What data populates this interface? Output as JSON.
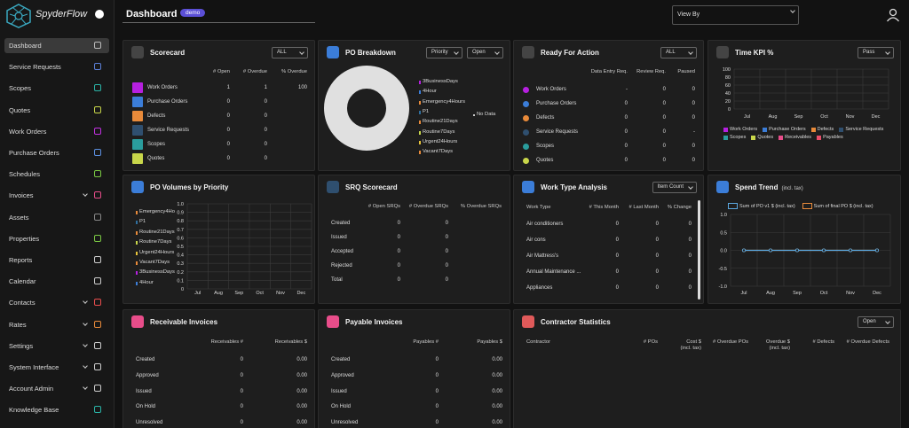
{
  "sidebar": {
    "brand": "SpyderFlow",
    "items": [
      {
        "label": "Dashboard",
        "active": true,
        "icon_color": "#bbbbbb"
      },
      {
        "label": "Service Requests",
        "icon_color": "#5b7fd6"
      },
      {
        "label": "Scopes",
        "icon_color": "#2ab3a6"
      },
      {
        "label": "Quotes",
        "icon_color": "#c8d64a"
      },
      {
        "label": "Work Orders",
        "icon_color": "#c030e0"
      },
      {
        "label": "Purchase Orders",
        "icon_color": "#5b8fe0"
      },
      {
        "label": "Schedules",
        "icon_color": "#7ac943"
      },
      {
        "label": "Invoices",
        "expandable": true,
        "icon_color": "#e84d8a"
      },
      {
        "label": "Assets",
        "icon_color": "#888888"
      },
      {
        "label": "Properties",
        "icon_color": "#7ac943"
      },
      {
        "label": "Reports",
        "icon_color": "#cccccc"
      },
      {
        "label": "Calendar",
        "icon_color": "#cccccc"
      },
      {
        "label": "Contacts",
        "expandable": true,
        "icon_color": "#e84d4d"
      },
      {
        "label": "Rates",
        "expandable": true,
        "icon_color": "#e88a3a"
      },
      {
        "label": "Settings",
        "expandable": true,
        "icon_color": "#cccccc"
      },
      {
        "label": "System Interface",
        "expandable": true,
        "icon_color": "#cccccc"
      },
      {
        "label": "Account Admin",
        "expandable": true,
        "icon_color": "#cccccc"
      },
      {
        "label": "Knowledge Base",
        "icon_color": "#2ab3a6"
      }
    ]
  },
  "header": {
    "title": "Dashboard",
    "badge": "demo",
    "view_by": "View By"
  },
  "panels": [
    {
      "title": "Scorecard",
      "icon_color": "#444444",
      "controls": [
        "ALL"
      ],
      "table": {
        "marker": "square",
        "columns": [
          "# Open",
          "# Overdue",
          "% Overdue"
        ],
        "rows": [
          {
            "label": "Work Orders",
            "color": "#b620e0",
            "values": [
              1,
              1,
              100
            ]
          },
          {
            "label": "Purchase Orders",
            "color": "#3b7dd8",
            "values": [
              0,
              0
            ]
          },
          {
            "label": "Defects",
            "color": "#e88a3a",
            "values": [
              0,
              0
            ]
          },
          {
            "label": "Service Requests",
            "color": "#2f4f6f",
            "values": [
              0,
              0
            ]
          },
          {
            "label": "Scopes",
            "color": "#2a9d9d",
            "values": [
              0,
              0
            ]
          },
          {
            "label": "Quotes",
            "color": "#c8d64a",
            "values": [
              0,
              0
            ]
          }
        ]
      }
    },
    {
      "title": "PO Breakdown",
      "icon_color": "#3b7dd8",
      "controls": [
        "Priority",
        "Open"
      ],
      "donut": {
        "empty_label": "No Data",
        "color": "#e0e0e0",
        "legend": [
          {
            "name": "3BusinessDays",
            "color": "#b620e0"
          },
          {
            "name": "4Hour",
            "color": "#3b7dd8"
          },
          {
            "name": "Emergency4Hours",
            "color": "#e88a3a"
          },
          {
            "name": "P1",
            "color": "#2f6f9f"
          },
          {
            "name": "Routine21Days",
            "color": "#e88a3a"
          },
          {
            "name": "Routine7Days",
            "color": "#c8d64a"
          },
          {
            "name": "Urgent24Hours",
            "color": "#e8c43a"
          },
          {
            "name": "Vacant7Days",
            "color": "#e88a3a"
          }
        ]
      }
    },
    {
      "title": "Ready For Action",
      "icon_color": "#444444",
      "controls": [
        "ALL"
      ],
      "table": {
        "marker": "dot",
        "columns": [
          "Data Entry Req.",
          "Review Req.",
          "Paused"
        ],
        "rows": [
          {
            "label": "Work Orders",
            "color": "#b620e0",
            "values": [
              "-",
              0,
              0
            ]
          },
          {
            "label": "Purchase Orders",
            "color": "#3b7dd8",
            "values": [
              0,
              0,
              0
            ]
          },
          {
            "label": "Defects",
            "color": "#e88a3a",
            "values": [
              0,
              0,
              0
            ]
          },
          {
            "label": "Service Requests",
            "color": "#2f4f6f",
            "values": [
              0,
              0,
              "-"
            ]
          },
          {
            "label": "Scopes",
            "color": "#2a9d9d",
            "values": [
              0,
              0,
              0
            ]
          },
          {
            "label": "Quotes",
            "color": "#c8d64a",
            "values": [
              0,
              0,
              0
            ]
          }
        ]
      }
    },
    {
      "title": "Time KPI %",
      "icon_color": "#444444",
      "controls": [
        "Pass"
      ],
      "chart": {
        "ylim": [
          0,
          100
        ],
        "yticks": [
          0,
          20,
          40,
          60,
          80,
          100
        ],
        "categories": [
          "Jul",
          "Aug",
          "Sep",
          "Oct",
          "Nov",
          "Dec"
        ],
        "legend": [
          {
            "name": "Work Orders",
            "color": "#b620e0"
          },
          {
            "name": "Purchase Orders",
            "color": "#3b7dd8"
          },
          {
            "name": "Defects",
            "color": "#e88a3a"
          },
          {
            "name": "Service Requests",
            "color": "#2f4f6f"
          },
          {
            "name": "Scopes",
            "color": "#2a9d9d"
          },
          {
            "name": "Quotes",
            "color": "#c8d64a"
          },
          {
            "name": "Receivables",
            "color": "#e84d8a"
          },
          {
            "name": "Payables",
            "color": "#e84d6a"
          }
        ]
      }
    },
    {
      "title": "PO Volumes by Priority",
      "icon_color": "#3b7dd8",
      "chart": {
        "ylim": [
          0,
          1
        ],
        "yticks": [
          0,
          0.1,
          0.2,
          0.3,
          0.4,
          0.5,
          0.6,
          0.7,
          0.8,
          0.9,
          {
            "value": 1,
            "label": "1.0"
          }
        ],
        "categories": [
          "Jul",
          "Aug",
          "Sep",
          "Oct",
          "Nov",
          "Dec"
        ],
        "legend": [
          {
            "name": "Emergency4Ho",
            "color": "#e88a3a"
          },
          {
            "name": "P1",
            "color": "#2f6f9f"
          },
          {
            "name": "Routine21Days",
            "color": "#e88a3a"
          },
          {
            "name": "Routine7Days",
            "color": "#c8d64a"
          },
          {
            "name": "Urgent24Hours",
            "color": "#e8c43a"
          },
          {
            "name": "Vacant7Days",
            "color": "#e88a3a"
          },
          {
            "name": "3BusinessDays",
            "color": "#b620e0"
          },
          {
            "name": "4Hour",
            "color": "#3b7dd8"
          }
        ]
      }
    },
    {
      "title": "SRQ Scorecard",
      "icon_color": "#2f4f6f",
      "table": {
        "columns": [
          "# Open SRQs",
          "# Overdue SRQs",
          "% Overdue SRQs"
        ],
        "rows": [
          {
            "label": "Created",
            "values": [
              0,
              0
            ]
          },
          {
            "label": "Issued",
            "values": [
              0,
              0
            ]
          },
          {
            "label": "Accepted",
            "values": [
              0,
              0
            ]
          },
          {
            "label": "Rejected",
            "values": [
              0,
              0
            ]
          },
          {
            "label": "Total",
            "values": [
              0,
              0
            ]
          }
        ]
      }
    },
    {
      "title": "Work Type Analysis",
      "icon_color": "#3b7dd8",
      "controls": [
        "Item Count"
      ],
      "table": {
        "label_header": "Work Type",
        "columns": [
          "# This Month",
          "# Last Month",
          "% Change"
        ],
        "rows": [
          {
            "label": "Air conditioners",
            "values": [
              0,
              0,
              0
            ]
          },
          {
            "label": "Air cons",
            "values": [
              0,
              0,
              0
            ]
          },
          {
            "label": "Air Mattress's",
            "values": [
              0,
              0,
              0
            ]
          },
          {
            "label": "Annual Maintenance ...",
            "values": [
              0,
              0,
              0
            ]
          },
          {
            "label": "Appliances",
            "values": [
              0,
              0,
              0
            ]
          }
        ]
      }
    },
    {
      "title": "Spend Trend",
      "subtitle": "(incl. tax)",
      "icon_color": "#3b7dd8",
      "chart": {
        "ylim": [
          -1,
          1
        ],
        "yticks": [
          {
            "value": -1,
            "label": "-1.0"
          },
          {
            "value": -0.5,
            "label": "-0.5"
          },
          {
            "value": 0,
            "label": "0.0"
          },
          {
            "value": 0.5,
            "label": "0.5"
          },
          {
            "value": 1,
            "label": "1.0"
          }
        ],
        "categories": [
          "Jul",
          "Aug",
          "Sep",
          "Oct",
          "Nov",
          "Dec"
        ],
        "series": [
          {
            "name": "Sum of PO v1 $ (incl. tax)",
            "color": "#5ba8e0",
            "values": [
              0,
              0,
              0,
              0,
              0,
              0
            ]
          },
          {
            "name": "Sum of final PO $ (incl. tax)",
            "color": "#e88a3a",
            "values": [
              0,
              0,
              0,
              0,
              0,
              0
            ]
          }
        ]
      }
    },
    {
      "title": "Receivable Invoices",
      "icon_color": "#e84d8a",
      "table": {
        "columns": [
          "Receivables #",
          "Receivables $"
        ],
        "rows": [
          {
            "label": "Created",
            "values": [
              0,
              "0.00"
            ]
          },
          {
            "label": "Approved",
            "values": [
              0,
              "0.00"
            ]
          },
          {
            "label": "Issued",
            "values": [
              0,
              "0.00"
            ]
          },
          {
            "label": "On Hold",
            "values": [
              0,
              "0.00"
            ]
          },
          {
            "label": "Unresolved",
            "values": [
              0,
              "0.00"
            ]
          }
        ]
      }
    },
    {
      "title": "Payable Invoices",
      "icon_color": "#e84d8a",
      "table": {
        "columns": [
          "Payables #",
          "Payables $"
        ],
        "rows": [
          {
            "label": "Created",
            "values": [
              0,
              "0.00"
            ]
          },
          {
            "label": "Approved",
            "values": [
              0,
              "0.00"
            ]
          },
          {
            "label": "Issued",
            "values": [
              0,
              "0.00"
            ]
          },
          {
            "label": "On Hold",
            "values": [
              0,
              "0.00"
            ]
          },
          {
            "label": "Unresolved",
            "values": [
              0,
              "0.00"
            ]
          }
        ]
      }
    },
    {
      "title": "Contractor Statistics",
      "icon_color": "#e05a5a",
      "controls": [
        "Open"
      ],
      "table": {
        "label_header": "Contractor",
        "columns": [
          "# POs",
          "Cost $\n(incl. tax)",
          "# Overdue POs",
          "Overdue $\n(incl. tax)",
          "# Defects",
          "# Overdue Defects"
        ],
        "rows": []
      }
    }
  ]
}
